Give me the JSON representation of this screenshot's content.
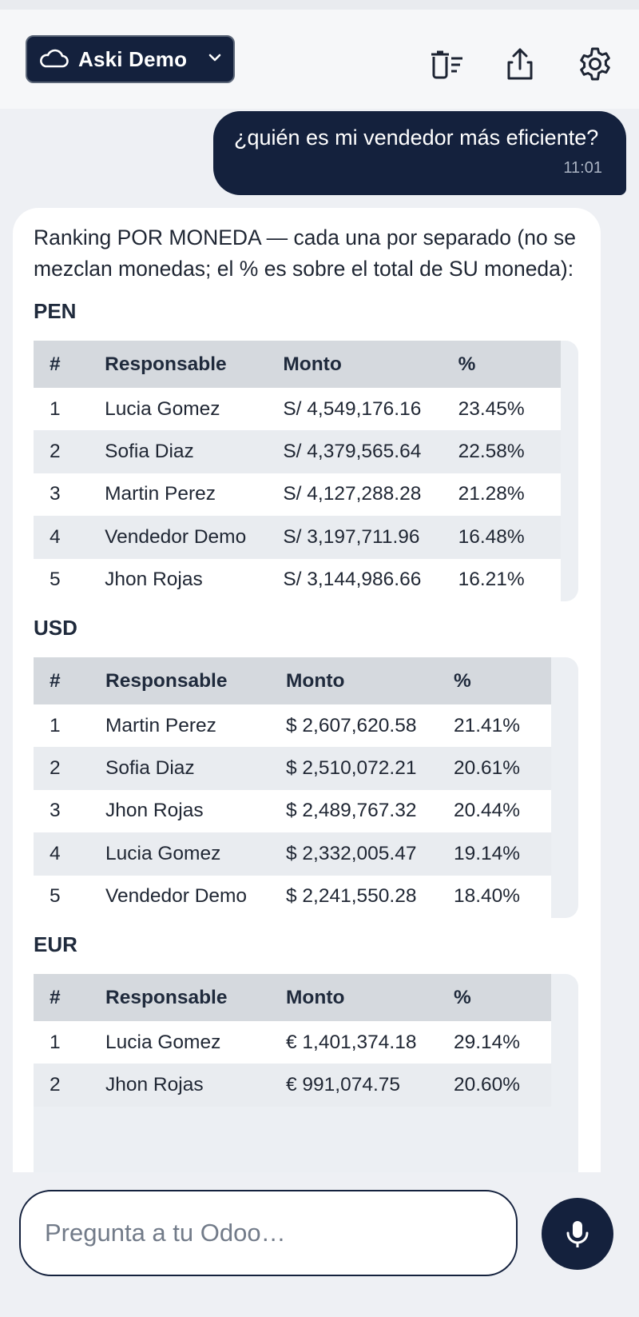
{
  "header": {
    "account_name": "Aski Demo"
  },
  "chat": {
    "user_message": {
      "text": "¿quién es mi vendedor más eficiente?",
      "time": "11:01"
    },
    "bot_message": {
      "intro": "Ranking POR MONEDA — cada una por separado (no se mezclan monedas; el % es sobre el total de SU moneda):",
      "tables": [
        {
          "currency": "PEN",
          "headers": [
            "#",
            "Responsable",
            "Monto",
            "%"
          ],
          "rows": [
            [
              "1",
              "Lucia Gomez",
              "S/ 4,549,176.16",
              "23.45%"
            ],
            [
              "2",
              "Sofia Diaz",
              "S/ 4,379,565.64",
              "22.58%"
            ],
            [
              "3",
              "Martin Perez",
              "S/ 4,127,288.28",
              "21.28%"
            ],
            [
              "4",
              "Vendedor Demo",
              "S/ 3,197,711.96",
              "16.48%"
            ],
            [
              "5",
              "Jhon Rojas",
              "S/ 3,144,986.66",
              "16.21%"
            ]
          ]
        },
        {
          "currency": "USD",
          "headers": [
            "#",
            "Responsable",
            "Monto",
            "%"
          ],
          "rows": [
            [
              "1",
              "Martin Perez",
              "$ 2,607,620.58",
              "21.41%"
            ],
            [
              "2",
              "Sofia Diaz",
              "$ 2,510,072.21",
              "20.61%"
            ],
            [
              "3",
              "Jhon Rojas",
              "$ 2,489,767.32",
              "20.44%"
            ],
            [
              "4",
              "Lucia Gomez",
              "$ 2,332,005.47",
              "19.14%"
            ],
            [
              "5",
              "Vendedor Demo",
              "$ 2,241,550.28",
              "18.40%"
            ]
          ]
        },
        {
          "currency": "EUR",
          "headers": [
            "#",
            "Responsable",
            "Monto",
            "%"
          ],
          "rows": [
            [
              "1",
              "Lucia Gomez",
              "€ 1,401,374.18",
              "29.14%"
            ],
            [
              "2",
              "Jhon Rojas",
              "€ 991,074.75",
              "20.60%"
            ]
          ]
        }
      ]
    }
  },
  "composer": {
    "placeholder": "Pregunta a tu Odoo…"
  },
  "icons": {
    "account": "cloud-icon",
    "dropdown": "chevron-down-icon",
    "clear": "delete-history-icon",
    "share": "share-icon",
    "settings": "gear-icon",
    "mic": "microphone-icon"
  },
  "colors": {
    "primary": "#14213d",
    "background": "#eef0f4",
    "table_header": "#d5d9de",
    "table_alt_row": "#e9ecf0"
  }
}
